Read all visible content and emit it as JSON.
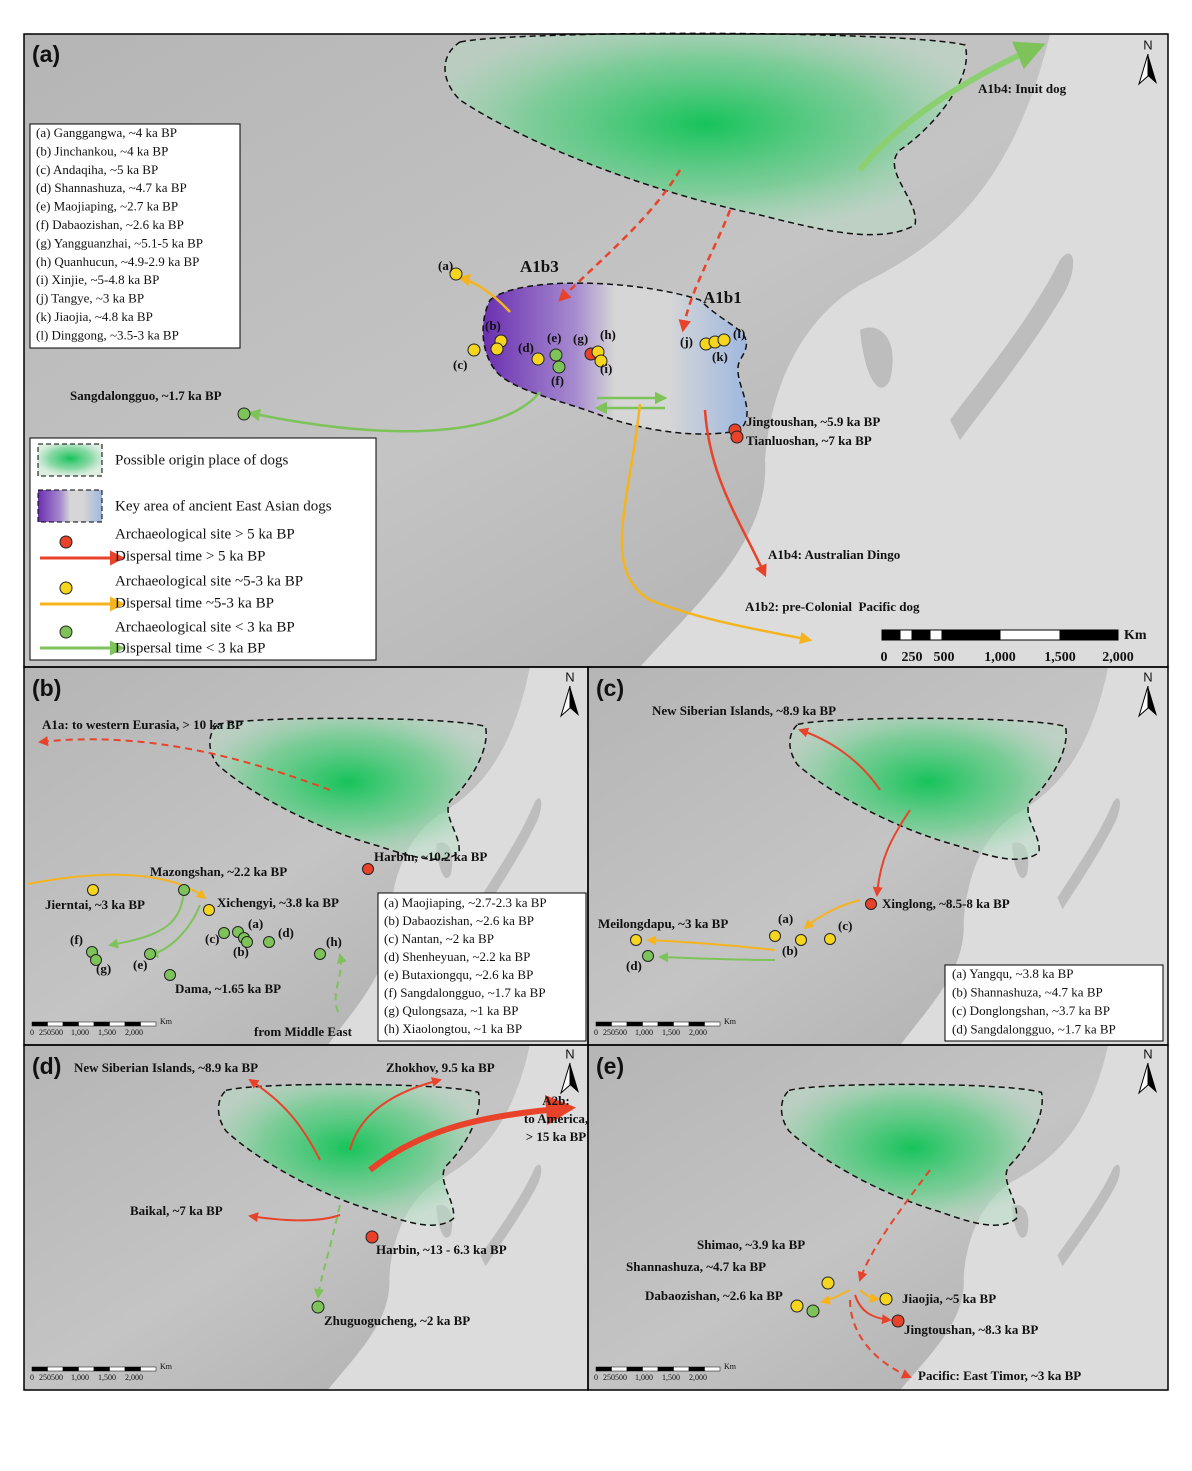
{
  "panels": [
    {
      "label": "(a)",
      "north": "N",
      "site_list": [
        "(a) Ganggangwa, ~4 ka BP",
        "(b) Jinchankou, ~4 ka BP",
        "(c) Andaqiha, ~5 ka BP",
        "(d) Shannashuza, ~4.7 ka BP",
        "(e) Maojiaping, ~2.7 ka BP",
        "(f) Dabaozishan, ~2.6 ka BP",
        "(g) Yangguanzhai, ~5.1-5 ka BP",
        "(h) Quanhucun, ~4.9-2.9 ka BP",
        "(i) Xinjie, ~5-4.8 ka BP",
        "(j) Tangye, ~3 ka BP",
        "(k) Jiaojia, ~4.8 ka BP",
        "(l) Dinggong, ~3.5-3 ka BP"
      ],
      "site_letters": [
        "(a)",
        "(b)",
        "(c)",
        "(d)",
        "(e)",
        "(f)",
        "(g)",
        "(h)",
        "(i)",
        "(j)",
        "(k)",
        "(l)"
      ],
      "annotations": [
        "A1b4: Inuit dog",
        "A1b3",
        "A1b1",
        "Sangdalongguo, ~1.7 ka BP",
        "Jingtoushan, ~5.9 ka BP",
        "Tianluoshan, ~7 ka BP",
        "A1b4: Australian Dingo",
        "A1b2: pre-Colonial  Pacific dog"
      ]
    },
    {
      "label": "(b)",
      "north": "N",
      "site_list": [
        "(a) Maojiaping, ~2.7-2.3 ka BP",
        "(b) Dabaozishan, ~2.6 ka BP",
        "(c) Nantan, ~2 ka BP",
        "(d) Shenheyuan, ~2.2 ka BP",
        "(e) Butaxiongqu, ~2.6 ka BP",
        "(f) Sangdalongguo, ~1.7 ka BP",
        "(g) Qulongsaza, ~1 ka BP",
        "(h) Xiaolongtou, ~1 ka BP"
      ],
      "site_letters": [
        "(a)",
        "(b)",
        "(c)",
        "(d)",
        "(e)",
        "(f)",
        "(g)",
        "(h)"
      ],
      "annotations": [
        "A1a: to western Eurasia, > 10 ka BP",
        "Harbin, ~10.2 ka BP",
        "Mazongshan, ~2.2 ka BP",
        "Xichengyi, ~3.8 ka BP",
        "Jierntai, ~3 ka BP",
        "Dama, ~1.65 ka BP",
        "from Middle East"
      ]
    },
    {
      "label": "(c)",
      "north": "N",
      "site_list": [
        "(a) Yangqu, ~3.8 ka BP",
        "(b) Shannashuza, ~4.7 ka BP",
        "(c) Donglongshan, ~3.7 ka BP",
        "(d) Sangdalongguo, ~1.7 ka BP"
      ],
      "site_letters": [
        "(a)",
        "(b)",
        "(c)",
        "(d)"
      ],
      "annotations": [
        "New Siberian Islands, ~8.9 ka BP",
        "Xinglong, ~8.5-8 ka BP",
        "Meilongdapu, ~3 ka BP"
      ]
    },
    {
      "label": "(d)",
      "north": "N",
      "annotations": [
        "New Siberian Islands, ~8.9 ka BP",
        "Zhokhov, 9.5 ka BP",
        "A2b:",
        "to America,",
        "> 15 ka BP",
        "Baikal, ~7 ka BP",
        "Harbin, ~13 - 6.3 ka BP",
        "Zhuguogucheng, ~2 ka BP"
      ]
    },
    {
      "label": "(e)",
      "north": "N",
      "annotations": [
        "Shimao, ~3.9 ka BP",
        "Shannashuza, ~4.7 ka BP",
        "Dabaozishan, ~2.6 ka BP",
        "Jiaojia, ~5 ka BP",
        "Jingtoushan, ~8.3 ka BP",
        "Pacific: East Timor, ~3 ka BP"
      ]
    }
  ],
  "legend": [
    "Possible origin place of dogs",
    "Key area of ancient East Asian dogs",
    "Archaeological site > 5 ka BP",
    "Dispersal time > 5 ka BP",
    "Archaeological site ~5-3 ka BP",
    "Dispersal time ~5-3 ka BP",
    "Archaeological site < 3 ka BP",
    "Dispersal time < 3 ka BP"
  ],
  "scale_bar": {
    "unit": "Km",
    "labels": [
      "0",
      "250",
      "500",
      "1,000",
      "1,500",
      "2,000"
    ]
  }
}
